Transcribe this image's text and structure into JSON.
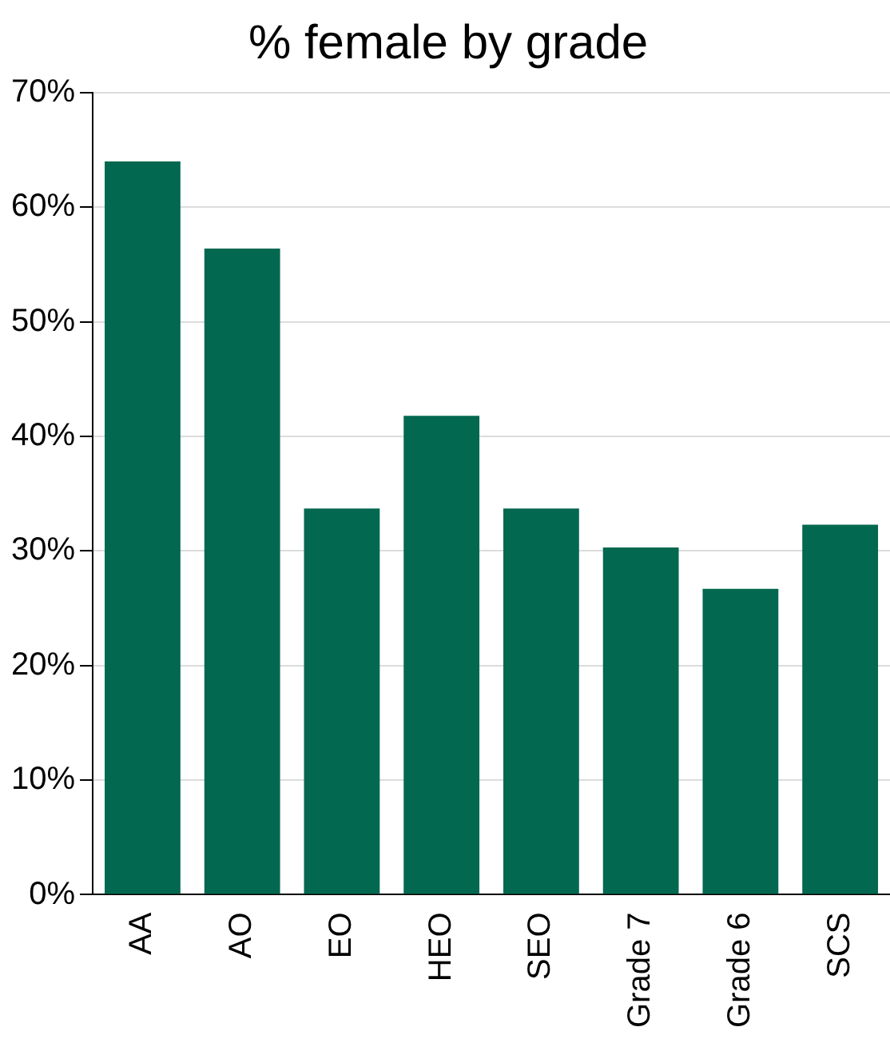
{
  "chart_data": {
    "type": "bar",
    "title": "% female by grade",
    "categories": [
      "AA",
      "AO",
      "EO",
      "HEO",
      "SEO",
      "Grade 7",
      "Grade 6",
      "SCS"
    ],
    "values": [
      64,
      56.4,
      33.7,
      41.8,
      33.7,
      30.3,
      26.7,
      32.3
    ],
    "color": "#036850",
    "ylim": [
      0,
      70
    ],
    "yticks": [
      {
        "value": 0,
        "label": "0%"
      },
      {
        "value": 10,
        "label": "10%"
      },
      {
        "value": 20,
        "label": "20%"
      },
      {
        "value": 30,
        "label": "30%"
      },
      {
        "value": 40,
        "label": "40%"
      },
      {
        "value": 50,
        "label": "50%"
      },
      {
        "value": 60,
        "label": "60%"
      },
      {
        "value": 70,
        "label": "70%"
      }
    ],
    "grid": "y",
    "legend": false
  }
}
